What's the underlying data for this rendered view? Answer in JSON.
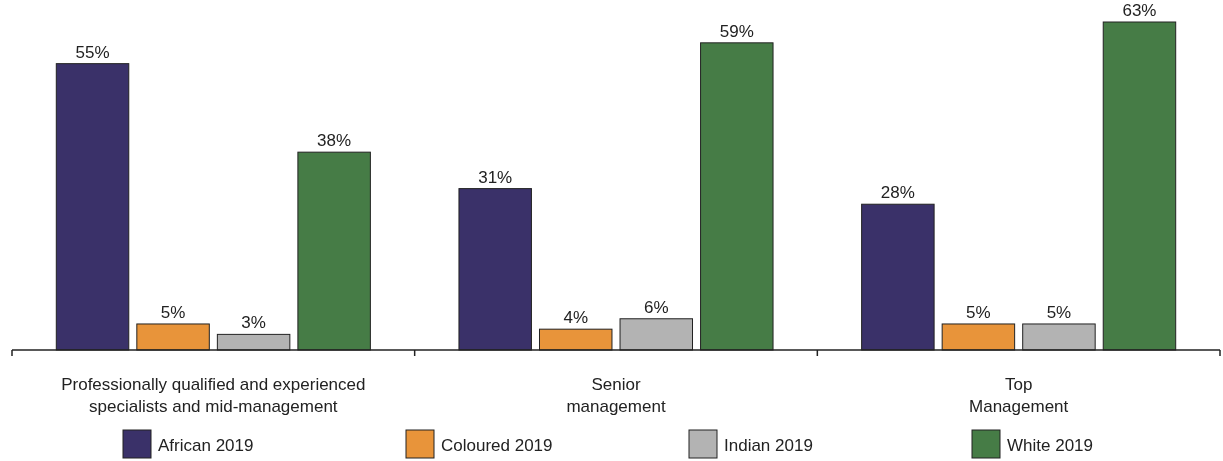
{
  "chart_data": {
    "type": "bar",
    "categories": [
      "Professionally qualified and experienced specialists and mid-management",
      "Senior management",
      "Top Management"
    ],
    "series": [
      {
        "name": "African 2019",
        "color": "#3a3169",
        "values": [
          55,
          31,
          28
        ],
        "value_labels": [
          "55%",
          "31%",
          "28%"
        ]
      },
      {
        "name": "Coloured 2019",
        "color": "#e8943a",
        "values": [
          5,
          4,
          5
        ],
        "value_labels": [
          "5%",
          "4%",
          "5%"
        ]
      },
      {
        "name": "Indian 2019",
        "color": "#b3b3b3",
        "values": [
          3,
          6,
          5
        ],
        "value_labels": [
          "3%",
          "6%",
          "5%"
        ]
      },
      {
        "name": "White 2019",
        "color": "#467c46",
        "values": [
          38,
          59,
          63
        ],
        "value_labels": [
          "38%",
          "59%",
          "63%"
        ]
      }
    ],
    "legend": "bottom"
  }
}
